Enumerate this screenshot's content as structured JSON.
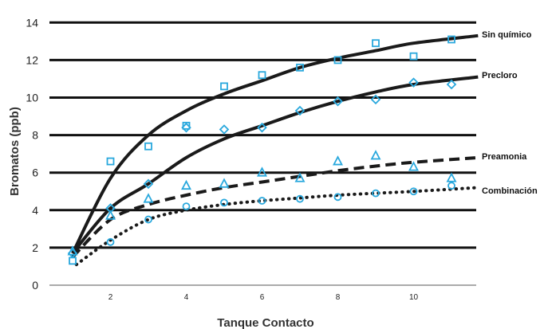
{
  "chart_data": {
    "type": "scatter",
    "title": "",
    "xlabel": "Tanque Contacto",
    "ylabel": "Bromatos (ppb)",
    "xlim": [
      0.5,
      11.7
    ],
    "ylim": [
      0,
      14.5
    ],
    "x_ticks": [
      2,
      4,
      6,
      8,
      10
    ],
    "y_ticks": [
      0,
      2,
      4,
      6,
      8,
      10,
      12,
      14
    ],
    "grid": "horizontal",
    "legend": "inline-right",
    "marker_color": "#29a8dd",
    "curve_color": "#1a1a1a",
    "series": [
      {
        "name": "Sin químico",
        "marker": "square",
        "line_style": "solid",
        "points": [
          {
            "x": 1,
            "y": 1.3
          },
          {
            "x": 2,
            "y": 6.6
          },
          {
            "x": 3,
            "y": 7.4
          },
          {
            "x": 4,
            "y": 8.5
          },
          {
            "x": 5,
            "y": 10.6
          },
          {
            "x": 6,
            "y": 11.2
          },
          {
            "x": 7,
            "y": 11.6
          },
          {
            "x": 8,
            "y": 12.0
          },
          {
            "x": 9,
            "y": 12.9
          },
          {
            "x": 10,
            "y": 12.2
          },
          {
            "x": 11,
            "y": 13.1
          }
        ],
        "fit": [
          {
            "x": 1,
            "y": 1.7
          },
          {
            "x": 2,
            "y": 5.7
          },
          {
            "x": 3,
            "y": 8.0
          },
          {
            "x": 4,
            "y": 9.3
          },
          {
            "x": 5,
            "y": 10.2
          },
          {
            "x": 6,
            "y": 10.9
          },
          {
            "x": 7,
            "y": 11.6
          },
          {
            "x": 8,
            "y": 12.1
          },
          {
            "x": 9,
            "y": 12.5
          },
          {
            "x": 10,
            "y": 12.9
          },
          {
            "x": 11.7,
            "y": 13.3
          }
        ]
      },
      {
        "name": "Precloro",
        "marker": "diamond",
        "line_style": "solid",
        "points": [
          {
            "x": 1,
            "y": 1.7
          },
          {
            "x": 2,
            "y": 4.1
          },
          {
            "x": 3,
            "y": 5.4
          },
          {
            "x": 4,
            "y": 8.4
          },
          {
            "x": 5,
            "y": 8.3
          },
          {
            "x": 6,
            "y": 8.4
          },
          {
            "x": 7,
            "y": 9.3
          },
          {
            "x": 8,
            "y": 9.8
          },
          {
            "x": 9,
            "y": 9.9
          },
          {
            "x": 10,
            "y": 10.8
          },
          {
            "x": 11,
            "y": 10.7
          }
        ],
        "fit": [
          {
            "x": 1,
            "y": 1.7
          },
          {
            "x": 2,
            "y": 4.1
          },
          {
            "x": 3,
            "y": 5.4
          },
          {
            "x": 4,
            "y": 6.8
          },
          {
            "x": 5,
            "y": 7.8
          },
          {
            "x": 6,
            "y": 8.5
          },
          {
            "x": 7,
            "y": 9.2
          },
          {
            "x": 8,
            "y": 9.8
          },
          {
            "x": 9,
            "y": 10.3
          },
          {
            "x": 10,
            "y": 10.7
          },
          {
            "x": 11.7,
            "y": 11.1
          }
        ]
      },
      {
        "name": "Preamonia",
        "marker": "triangle",
        "line_style": "dashed",
        "points": [
          {
            "x": 1,
            "y": 1.8
          },
          {
            "x": 2,
            "y": 3.7
          },
          {
            "x": 3,
            "y": 4.6
          },
          {
            "x": 4,
            "y": 5.3
          },
          {
            "x": 5,
            "y": 5.4
          },
          {
            "x": 6,
            "y": 6.0
          },
          {
            "x": 7,
            "y": 5.7
          },
          {
            "x": 8,
            "y": 6.6
          },
          {
            "x": 9,
            "y": 6.9
          },
          {
            "x": 10,
            "y": 6.3
          },
          {
            "x": 11,
            "y": 5.7
          }
        ],
        "fit": [
          {
            "x": 1,
            "y": 1.5
          },
          {
            "x": 2,
            "y": 3.5
          },
          {
            "x": 3,
            "y": 4.3
          },
          {
            "x": 4,
            "y": 4.8
          },
          {
            "x": 5,
            "y": 5.2
          },
          {
            "x": 6,
            "y": 5.5
          },
          {
            "x": 7,
            "y": 5.8
          },
          {
            "x": 8,
            "y": 6.1
          },
          {
            "x": 9,
            "y": 6.35
          },
          {
            "x": 10,
            "y": 6.55
          },
          {
            "x": 11.7,
            "y": 6.8
          }
        ]
      },
      {
        "name": "Combinación",
        "marker": "circle",
        "line_style": "dotted",
        "points": [
          {
            "x": 2,
            "y": 2.3
          },
          {
            "x": 3,
            "y": 3.5
          },
          {
            "x": 4,
            "y": 4.2
          },
          {
            "x": 5,
            "y": 4.4
          },
          {
            "x": 6,
            "y": 4.5
          },
          {
            "x": 7,
            "y": 4.6
          },
          {
            "x": 8,
            "y": 4.7
          },
          {
            "x": 9,
            "y": 4.9
          },
          {
            "x": 10,
            "y": 5.0
          },
          {
            "x": 11,
            "y": 5.3
          }
        ],
        "fit": [
          {
            "x": 1.1,
            "y": 1.1
          },
          {
            "x": 2,
            "y": 2.4
          },
          {
            "x": 3,
            "y": 3.5
          },
          {
            "x": 4,
            "y": 4.0
          },
          {
            "x": 5,
            "y": 4.3
          },
          {
            "x": 6,
            "y": 4.5
          },
          {
            "x": 7,
            "y": 4.65
          },
          {
            "x": 8,
            "y": 4.8
          },
          {
            "x": 9,
            "y": 4.9
          },
          {
            "x": 10,
            "y": 5.0
          },
          {
            "x": 11.7,
            "y": 5.2
          }
        ]
      }
    ]
  }
}
